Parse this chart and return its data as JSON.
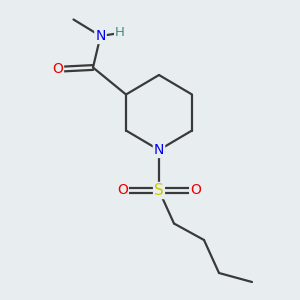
{
  "bg_color": "#e8eef0",
  "bond_color": "#3a3a3a",
  "atom_colors": {
    "N": "#0000ee",
    "O": "#ee0000",
    "S": "#cccc00",
    "H": "#448888",
    "C": "#3a3a3a"
  }
}
